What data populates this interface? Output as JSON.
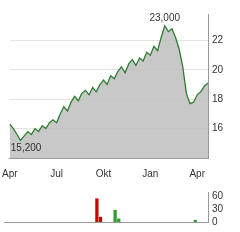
{
  "chart_data": [
    {
      "type": "area",
      "categories": [
        "Apr",
        null,
        null,
        null,
        null,
        null,
        null,
        null,
        null,
        null,
        null,
        null,
        null,
        "Jul",
        null,
        null,
        null,
        null,
        null,
        null,
        null,
        null,
        null,
        null,
        null,
        null,
        "Okt",
        null,
        null,
        null,
        null,
        null,
        null,
        null,
        null,
        null,
        null,
        null,
        null,
        "Jan",
        null,
        null,
        null,
        null,
        null,
        null,
        null,
        null,
        null,
        null,
        null,
        null,
        "Apr",
        null,
        null,
        null
      ],
      "values": [
        16.3,
        16.0,
        15.6,
        15.2,
        15.5,
        15.8,
        15.6,
        16.0,
        15.8,
        16.2,
        16.0,
        16.4,
        16.6,
        16.4,
        17.0,
        17.5,
        17.2,
        17.8,
        18.2,
        17.9,
        18.4,
        18.6,
        18.3,
        18.8,
        18.5,
        19.0,
        19.3,
        19.0,
        19.6,
        19.4,
        19.9,
        20.2,
        19.8,
        20.4,
        20.7,
        20.3,
        20.8,
        20.6,
        21.2,
        21.0,
        21.6,
        21.3,
        22.2,
        23.0,
        22.6,
        22.8,
        22.2,
        21.4,
        20.2,
        18.4,
        17.7,
        17.8,
        18.3,
        18.5,
        18.9,
        19.1
      ],
      "color": "#2e7d32",
      "ylim": [
        14.0,
        23.8
      ],
      "yticks": [
        16,
        18,
        20,
        22
      ],
      "grid": true,
      "annotations": [
        {
          "text": "23,000",
          "value": 23.0
        },
        {
          "text": "15,200",
          "value": 15.2
        }
      ]
    },
    {
      "type": "bar",
      "categories": [
        "Apr",
        null,
        null,
        null,
        null,
        null,
        null,
        null,
        null,
        null,
        null,
        null,
        null,
        "Jul",
        null,
        null,
        null,
        null,
        null,
        null,
        null,
        null,
        null,
        null,
        null,
        null,
        "Okt",
        null,
        null,
        null,
        null,
        null,
        null,
        null,
        null,
        null,
        null,
        null,
        null,
        "Jan",
        null,
        null,
        null,
        null,
        null,
        null,
        null,
        null,
        null,
        null,
        null,
        null,
        "Apr",
        null,
        null,
        null
      ],
      "values": [
        0,
        0,
        0,
        0,
        0,
        0,
        0,
        0,
        0,
        0,
        0,
        0,
        0,
        0,
        0,
        0,
        0,
        0,
        0,
        0,
        0,
        0,
        0,
        0,
        0,
        55,
        12,
        0,
        0,
        0,
        28,
        8,
        0,
        0,
        0,
        0,
        0,
        0,
        0,
        0,
        0,
        0,
        0,
        0,
        0,
        0,
        0,
        0,
        0,
        0,
        0,
        0,
        5,
        0,
        0,
        0
      ],
      "colors": [
        "#999999",
        "#999999",
        "#999999",
        "#999999",
        "#999999",
        "#999999",
        "#999999",
        "#999999",
        "#999999",
        "#999999",
        "#999999",
        "#999999",
        "#999999",
        "#999999",
        "#999999",
        "#999999",
        "#999999",
        "#999999",
        "#999999",
        "#999999",
        "#999999",
        "#999999",
        "#999999",
        "#999999",
        "#999999",
        "#cc0000",
        "#cc0000",
        "#999999",
        "#999999",
        "#999999",
        "#2e9e2e",
        "#2e9e2e",
        "#999999",
        "#999999",
        "#999999",
        "#999999",
        "#999999",
        "#999999",
        "#999999",
        "#999999",
        "#999999",
        "#999999",
        "#999999",
        "#999999",
        "#999999",
        "#999999",
        "#999999",
        "#999999",
        "#999999",
        "#999999",
        "#999999",
        "#999999",
        "#2e9e2e",
        "#999999",
        "#999999",
        "#999999"
      ],
      "ylim": [
        0,
        70
      ],
      "yticks": [
        0,
        30,
        60
      ],
      "grid": false,
      "tick_labels": "y"
    }
  ]
}
